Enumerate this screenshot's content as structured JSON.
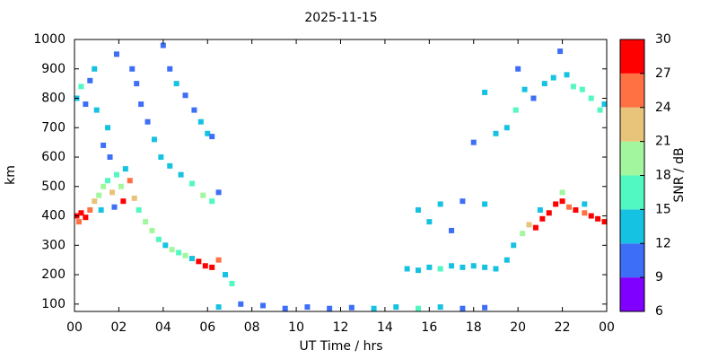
{
  "chart_data": {
    "type": "heatmap",
    "title": "2025-11-15",
    "xlabel": "UT Time / hrs",
    "ylabel": "km",
    "colorbar_label": "SNR / dB",
    "xlim": [
      0,
      24
    ],
    "xticks": [
      {
        "value": 0,
        "label": "00"
      },
      {
        "value": 2,
        "label": "02"
      },
      {
        "value": 4,
        "label": "04"
      },
      {
        "value": 6,
        "label": "06"
      },
      {
        "value": 8,
        "label": "08"
      },
      10,
      12,
      14,
      16,
      18,
      20,
      22,
      {
        "value": 24,
        "label": "00"
      }
    ],
    "ylim": [
      75,
      1000
    ],
    "yticks": [
      100,
      200,
      300,
      400,
      500,
      600,
      700,
      800,
      900,
      1000
    ],
    "zticks": [
      6,
      9,
      12,
      15,
      18,
      21,
      24,
      27,
      30
    ],
    "zcolors": [
      "#7f00ff",
      "#3d6ef7",
      "#16c2e2",
      "#52f8c2",
      "#a2f79e",
      "#e8c47a",
      "#ff7042",
      "#ff0000"
    ],
    "x": [
      0.1,
      0.3,
      0.5,
      0.7,
      0.9,
      1.1,
      1.3,
      1.5,
      1.7,
      1.9,
      2.1,
      2.3,
      2.5,
      2.7,
      2.9,
      1.2,
      1.8,
      0.2,
      2.2,
      0.1,
      0.3,
      0.5,
      0.7,
      0.9,
      1.0,
      1.3,
      1.5,
      1.6,
      1.9,
      2.6,
      2.8,
      3.2,
      3.5,
      3.8,
      4.1,
      4.4,
      4.7,
      5.0,
      5.3,
      5.6,
      5.9,
      6.2,
      6.5,
      6.8,
      7.1,
      4.0,
      4.3,
      4.6,
      5.0,
      5.4,
      5.7,
      6.0,
      6.2,
      3.0,
      3.3,
      3.6,
      3.9,
      4.3,
      4.8,
      5.3,
      5.8,
      6.2,
      6.5,
      6.5,
      7.5,
      8.5,
      9.5,
      10.5,
      11.5,
      12.5,
      13.5,
      14.5,
      15.5,
      16.5,
      17.5,
      18.5,
      15.0,
      15.5,
      16.0,
      16.5,
      17.0,
      17.5,
      18.0,
      18.5,
      19.0,
      19.5,
      15.5,
      16.5,
      17.5,
      18.5,
      16.0,
      17.0,
      18.0,
      19.0,
      18.5,
      19.8,
      20.2,
      20.5,
      20.8,
      21.1,
      21.4,
      21.7,
      22.0,
      22.3,
      22.6,
      23.0,
      23.3,
      23.6,
      23.9,
      21.0,
      22.0,
      23.0,
      19.5,
      19.9,
      20.3,
      20.7,
      21.2,
      21.6,
      21.9,
      22.2,
      22.5,
      22.9,
      23.3,
      23.7,
      23.9,
      20.0
    ],
    "y": [
      400,
      410,
      395,
      420,
      450,
      470,
      500,
      520,
      480,
      540,
      500,
      560,
      520,
      460,
      420,
      420,
      430,
      380,
      450,
      800,
      840,
      780,
      860,
      900,
      760,
      640,
      700,
      600,
      950,
      900,
      850,
      380,
      350,
      320,
      300,
      285,
      275,
      265,
      255,
      245,
      230,
      225,
      250,
      200,
      170,
      980,
      900,
      850,
      810,
      760,
      720,
      680,
      670,
      780,
      720,
      660,
      600,
      570,
      540,
      510,
      470,
      450,
      480,
      90,
      100,
      95,
      85,
      90,
      85,
      88,
      85,
      90,
      85,
      90,
      85,
      88,
      220,
      215,
      225,
      220,
      230,
      225,
      230,
      225,
      220,
      250,
      420,
      440,
      450,
      440,
      380,
      350,
      650,
      680,
      820,
      300,
      340,
      370,
      360,
      390,
      410,
      440,
      450,
      430,
      420,
      410,
      400,
      390,
      380,
      420,
      480,
      440,
      700,
      760,
      830,
      800,
      850,
      870,
      960,
      880,
      840,
      830,
      800,
      760,
      780,
      900
    ],
    "snr": [
      29,
      28,
      27,
      25,
      22,
      20,
      19,
      17,
      23,
      16,
      20,
      14,
      25,
      22,
      16,
      12,
      10,
      26,
      27,
      13,
      15,
      11,
      10,
      12,
      14,
      11,
      13,
      10,
      10,
      11,
      10,
      20,
      18,
      16,
      14,
      19,
      15,
      20,
      12,
      27,
      28,
      29,
      24,
      14,
      16,
      11,
      10,
      12,
      11,
      10,
      12,
      13,
      11,
      10,
      11,
      12,
      13,
      14,
      12,
      16,
      18,
      15,
      11,
      12,
      10,
      11,
      10,
      10,
      11,
      10,
      12,
      14,
      16,
      13,
      11,
      10,
      13,
      14,
      12,
      15,
      14,
      13,
      12,
      14,
      13,
      12,
      12,
      14,
      11,
      13,
      12,
      11,
      11,
      13,
      12,
      13,
      18,
      22,
      28,
      29,
      27,
      28,
      29,
      26,
      28,
      24,
      28,
      27,
      29,
      14,
      18,
      13,
      14,
      16,
      12,
      11,
      13,
      12,
      11,
      14,
      16,
      15,
      17,
      16,
      13,
      11
    ]
  }
}
